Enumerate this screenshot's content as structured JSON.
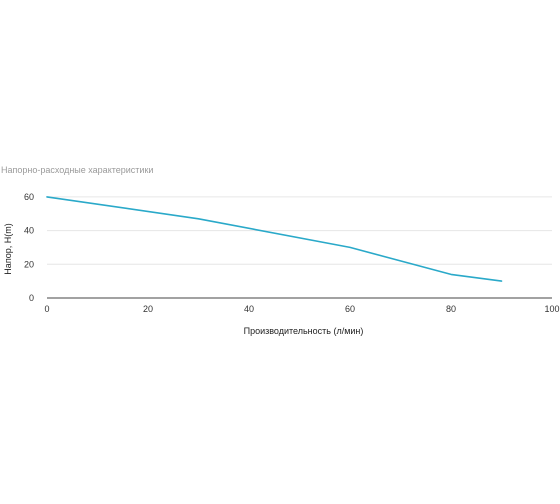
{
  "chart_data": {
    "type": "line",
    "title": "Напорно-расходные характеристики",
    "xlabel": "Производительность (л/мин)",
    "ylabel": "Напор, H(m)",
    "xlim": [
      0,
      100
    ],
    "ylim": [
      0,
      70
    ],
    "x_ticks": [
      0,
      20,
      40,
      60,
      80,
      100
    ],
    "y_ticks": [
      0,
      20,
      40,
      60
    ],
    "grid": true,
    "series": [
      {
        "color": "#2aa9c9",
        "x": [
          0,
          30,
          60,
          80,
          90
        ],
        "y": [
          60,
          47,
          30,
          14,
          10
        ]
      }
    ]
  }
}
